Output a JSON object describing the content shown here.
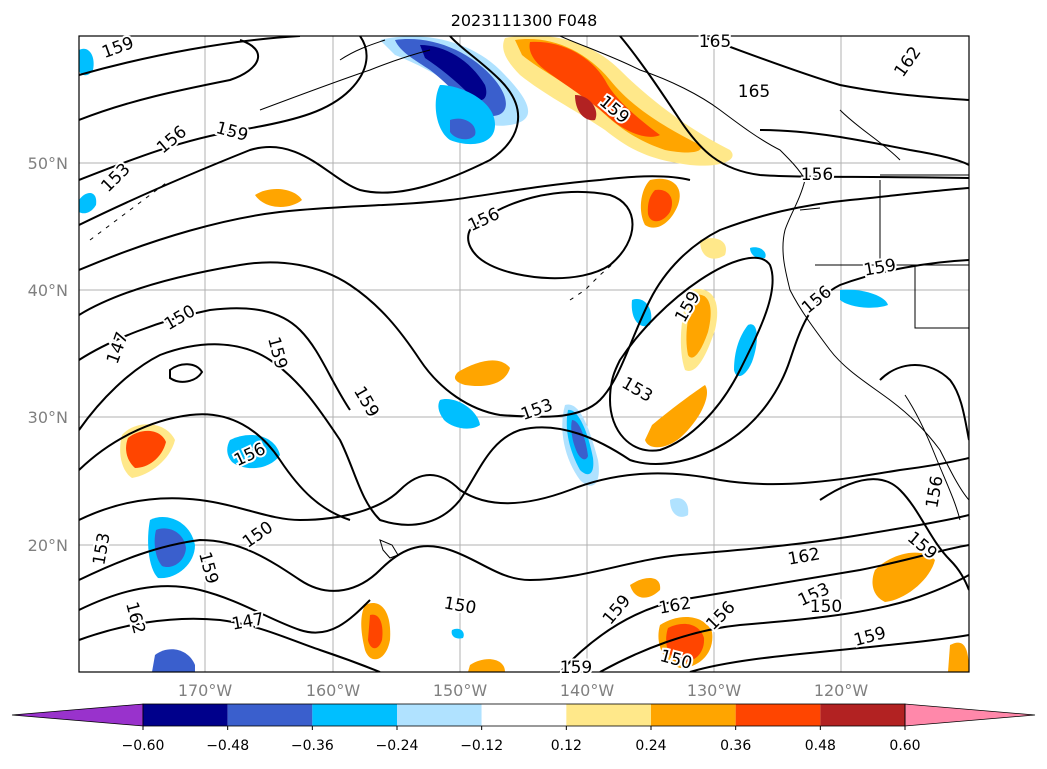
{
  "title": "2023111300 F048",
  "lat_labels": [
    "50°N",
    "40°N",
    "30°N",
    "20°N"
  ],
  "lon_labels": [
    "170°W",
    "160°W",
    "150°W",
    "140°W",
    "130°W",
    "120°W"
  ],
  "colorbar": {
    "ticks": [
      "−0.60",
      "−0.48",
      "−0.36",
      "−0.24",
      "−0.12",
      "0.12",
      "0.24",
      "0.36",
      "0.48",
      "0.60"
    ],
    "colors": [
      "#9932cc",
      "#00008b",
      "#3a5fcd",
      "#00bfff",
      "#b0e2ff",
      "#ffffff",
      "#ffe88a",
      "#ffa500",
      "#ff4500",
      "#b22222",
      "#ff88aa"
    ]
  },
  "contour_labels": [
    "159",
    "165",
    "162",
    "165",
    "153",
    "156",
    "159",
    "159",
    "156",
    "156",
    "159",
    "156",
    "150",
    "147",
    "159",
    "159",
    "153",
    "159",
    "153",
    "156",
    "150",
    "159",
    "162",
    "162",
    "147",
    "150",
    "159",
    "162",
    "156",
    "159",
    "153",
    "150",
    "159",
    "156",
    "153",
    "150",
    "159"
  ]
}
